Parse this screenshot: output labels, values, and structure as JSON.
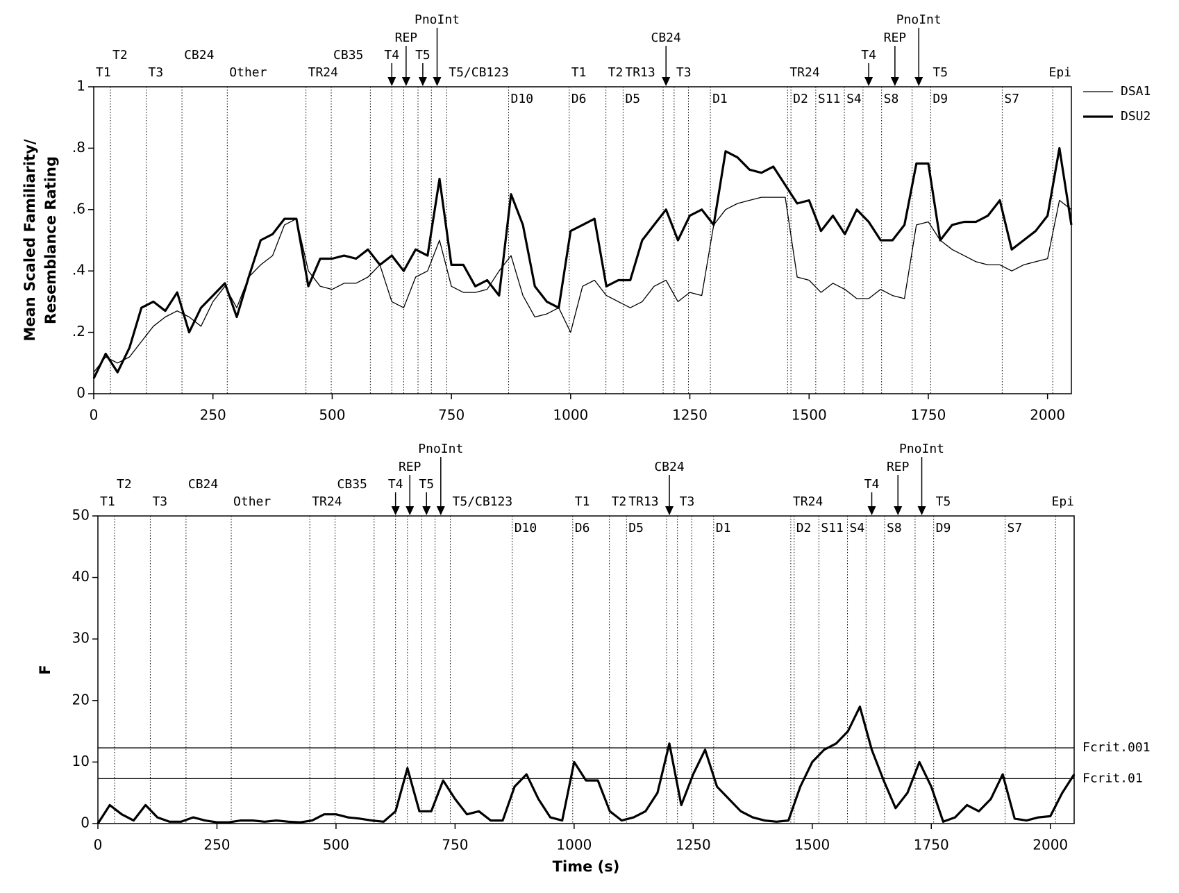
{
  "chart_data": [
    {
      "type": "line",
      "ylabel": [
        "Mean Scaled Familiarity/",
        "Resemblance Rating"
      ],
      "x": [
        0,
        25,
        50,
        75,
        100,
        125,
        150,
        175,
        200,
        225,
        250,
        275,
        300,
        325,
        350,
        375,
        400,
        425,
        450,
        475,
        500,
        525,
        550,
        575,
        600,
        625,
        650,
        675,
        700,
        725,
        750,
        775,
        800,
        825,
        850,
        875,
        900,
        925,
        950,
        975,
        1000,
        1025,
        1050,
        1075,
        1100,
        1125,
        1150,
        1175,
        1200,
        1225,
        1250,
        1275,
        1300,
        1325,
        1350,
        1375,
        1400,
        1425,
        1450,
        1475,
        1500,
        1525,
        1550,
        1575,
        1600,
        1625,
        1650,
        1675,
        1700,
        1725,
        1750,
        1775,
        1800,
        1825,
        1850,
        1875,
        1900,
        1925,
        1950,
        1975,
        2000,
        2025,
        2050
      ],
      "series": [
        {
          "name": "DSA1",
          "color": "#000000",
          "values": [
            0.07,
            0.12,
            0.1,
            0.12,
            0.17,
            0.22,
            0.25,
            0.27,
            0.25,
            0.22,
            0.3,
            0.35,
            0.28,
            0.38,
            0.42,
            0.45,
            0.55,
            0.57,
            0.4,
            0.35,
            0.34,
            0.36,
            0.36,
            0.38,
            0.42,
            0.3,
            0.28,
            0.38,
            0.4,
            0.5,
            0.35,
            0.33,
            0.33,
            0.34,
            0.4,
            0.45,
            0.32,
            0.25,
            0.26,
            0.28,
            0.2,
            0.35,
            0.37,
            0.32,
            0.3,
            0.28,
            0.3,
            0.35,
            0.37,
            0.3,
            0.33,
            0.32,
            0.55,
            0.6,
            0.62,
            0.63,
            0.64,
            0.64,
            0.64,
            0.38,
            0.37,
            0.33,
            0.36,
            0.34,
            0.31,
            0.31,
            0.34,
            0.32,
            0.31,
            0.55,
            0.56,
            0.5,
            0.47,
            0.45,
            0.43,
            0.42,
            0.42,
            0.4,
            0.42,
            0.43,
            0.44,
            0.63,
            0.6
          ]
        },
        {
          "name": "DSU2",
          "color": "#000000",
          "values": [
            0.05,
            0.13,
            0.07,
            0.15,
            0.28,
            0.3,
            0.27,
            0.33,
            0.2,
            0.28,
            0.32,
            0.36,
            0.25,
            0.38,
            0.5,
            0.52,
            0.57,
            0.57,
            0.35,
            0.44,
            0.44,
            0.45,
            0.44,
            0.47,
            0.42,
            0.45,
            0.4,
            0.47,
            0.45,
            0.7,
            0.42,
            0.42,
            0.35,
            0.37,
            0.32,
            0.65,
            0.55,
            0.35,
            0.3,
            0.28,
            0.53,
            0.55,
            0.57,
            0.35,
            0.37,
            0.37,
            0.5,
            0.55,
            0.6,
            0.5,
            0.58,
            0.6,
            0.55,
            0.79,
            0.77,
            0.73,
            0.72,
            0.74,
            0.68,
            0.62,
            0.63,
            0.53,
            0.58,
            0.52,
            0.6,
            0.56,
            0.5,
            0.5,
            0.55,
            0.75,
            0.75,
            0.5,
            0.55,
            0.56,
            0.56,
            0.58,
            0.63,
            0.47,
            0.5,
            0.53,
            0.58,
            0.8,
            0.55
          ]
        }
      ],
      "xlim": [
        0,
        2050
      ],
      "xticks": [
        0,
        250,
        500,
        750,
        1000,
        1250,
        1500,
        1750,
        2000
      ],
      "ylim": [
        0,
        1
      ],
      "yticks": [
        0,
        {
          "value": 0.2,
          "label": ".2"
        },
        {
          "value": 0.4,
          "label": ".4"
        },
        {
          "value": 0.6,
          "label": ".6"
        },
        {
          "value": 0.8,
          "label": ".8"
        },
        1
      ]
    },
    {
      "type": "line",
      "ylabel": "F",
      "xlabel": "Time (s)",
      "x": [
        0,
        25,
        50,
        75,
        100,
        125,
        150,
        175,
        200,
        225,
        250,
        275,
        300,
        325,
        350,
        375,
        400,
        425,
        450,
        475,
        500,
        525,
        550,
        575,
        600,
        625,
        650,
        675,
        700,
        725,
        750,
        775,
        800,
        825,
        850,
        875,
        900,
        925,
        950,
        975,
        1000,
        1025,
        1050,
        1075,
        1100,
        1125,
        1150,
        1175,
        1200,
        1225,
        1250,
        1275,
        1300,
        1325,
        1350,
        1375,
        1400,
        1425,
        1450,
        1475,
        1500,
        1525,
        1550,
        1575,
        1600,
        1625,
        1650,
        1675,
        1700,
        1725,
        1750,
        1775,
        1800,
        1825,
        1850,
        1875,
        1900,
        1925,
        1950,
        1975,
        2000,
        2025,
        2050
      ],
      "series": [
        {
          "name": "F",
          "color": "#000000",
          "values": [
            0,
            3,
            1.5,
            0.5,
            3,
            1,
            0.3,
            0.3,
            1,
            0.5,
            0.2,
            0.2,
            0.5,
            0.5,
            0.3,
            0.5,
            0.3,
            0.2,
            0.5,
            1.5,
            1.5,
            1,
            0.8,
            0.5,
            0.3,
            2,
            9,
            2,
            2,
            7,
            4,
            1.5,
            2,
            0.5,
            0.5,
            6,
            8,
            4,
            1,
            0.5,
            10,
            7,
            7,
            2,
            0.5,
            1,
            2,
            5,
            13,
            3,
            8,
            12,
            6,
            4,
            2,
            1,
            0.5,
            0.3,
            0.5,
            6,
            10,
            12,
            13,
            15,
            19,
            12,
            7,
            2.5,
            5,
            10,
            6,
            0.3,
            1,
            3,
            2,
            4,
            8,
            0.8,
            0.5,
            1,
            1.2,
            5,
            8
          ]
        }
      ],
      "reference_lines": [
        {
          "label": "Fcrit.001",
          "value": 12.3
        },
        {
          "label": "Fcrit.01",
          "value": 7.3
        }
      ],
      "xlim": [
        0,
        2050
      ],
      "xticks": [
        0,
        250,
        500,
        750,
        1000,
        1250,
        1500,
        1750,
        2000
      ],
      "ylim": [
        0,
        50
      ],
      "yticks": [
        0,
        10,
        20,
        30,
        40,
        50
      ]
    }
  ],
  "markers": [
    {
      "text": "T1",
      "x": 0
    },
    {
      "text": "T2",
      "x": 35
    },
    {
      "text": "T3",
      "x": 110
    },
    {
      "text": "CB24",
      "x": 185
    },
    {
      "text": "Other",
      "x": 280
    },
    {
      "text": "TR24",
      "x": 445
    },
    {
      "text": "CB35",
      "x": 498
    },
    {
      "text": "T4",
      "x": 625
    },
    {
      "text": "REP",
      "x": 655
    },
    {
      "text": "T5",
      "x": 690
    },
    {
      "text": "PnoInt",
      "x": 720
    },
    {
      "text": "T5/CB123",
      "x": 740
    },
    {
      "text": "D10",
      "x": 870
    },
    {
      "text": "T1",
      "x": 997
    },
    {
      "text": "D6",
      "x": 997
    },
    {
      "text": "T2",
      "x": 1074
    },
    {
      "text": "D5",
      "x": 1110
    },
    {
      "text": "TR13",
      "x": 1110
    },
    {
      "text": "CB24",
      "x": 1200
    },
    {
      "text": "T3",
      "x": 1217
    },
    {
      "text": "D1",
      "x": 1293
    },
    {
      "text": "TR24",
      "x": 1455
    },
    {
      "text": "D2",
      "x": 1462
    },
    {
      "text": "S11",
      "x": 1514
    },
    {
      "text": "S4",
      "x": 1574
    },
    {
      "text": "T4",
      "x": 1625
    },
    {
      "text": "S8",
      "x": 1652
    },
    {
      "text": "REP",
      "x": 1680
    },
    {
      "text": "PnoInt",
      "x": 1730
    },
    {
      "text": "T5",
      "x": 1755
    },
    {
      "text": "D9",
      "x": 1755
    },
    {
      "text": "S7",
      "x": 1905
    },
    {
      "text": "Epi",
      "x": 2050
    }
  ],
  "boundaries": [
    35,
    110,
    185,
    280,
    445,
    498,
    580,
    625,
    650,
    680,
    708,
    740,
    870,
    997,
    1074,
    1110,
    1194,
    1217,
    1247,
    1293,
    1455,
    1462,
    1514,
    1574,
    1613,
    1652,
    1716,
    1755,
    1905,
    2011
  ]
}
